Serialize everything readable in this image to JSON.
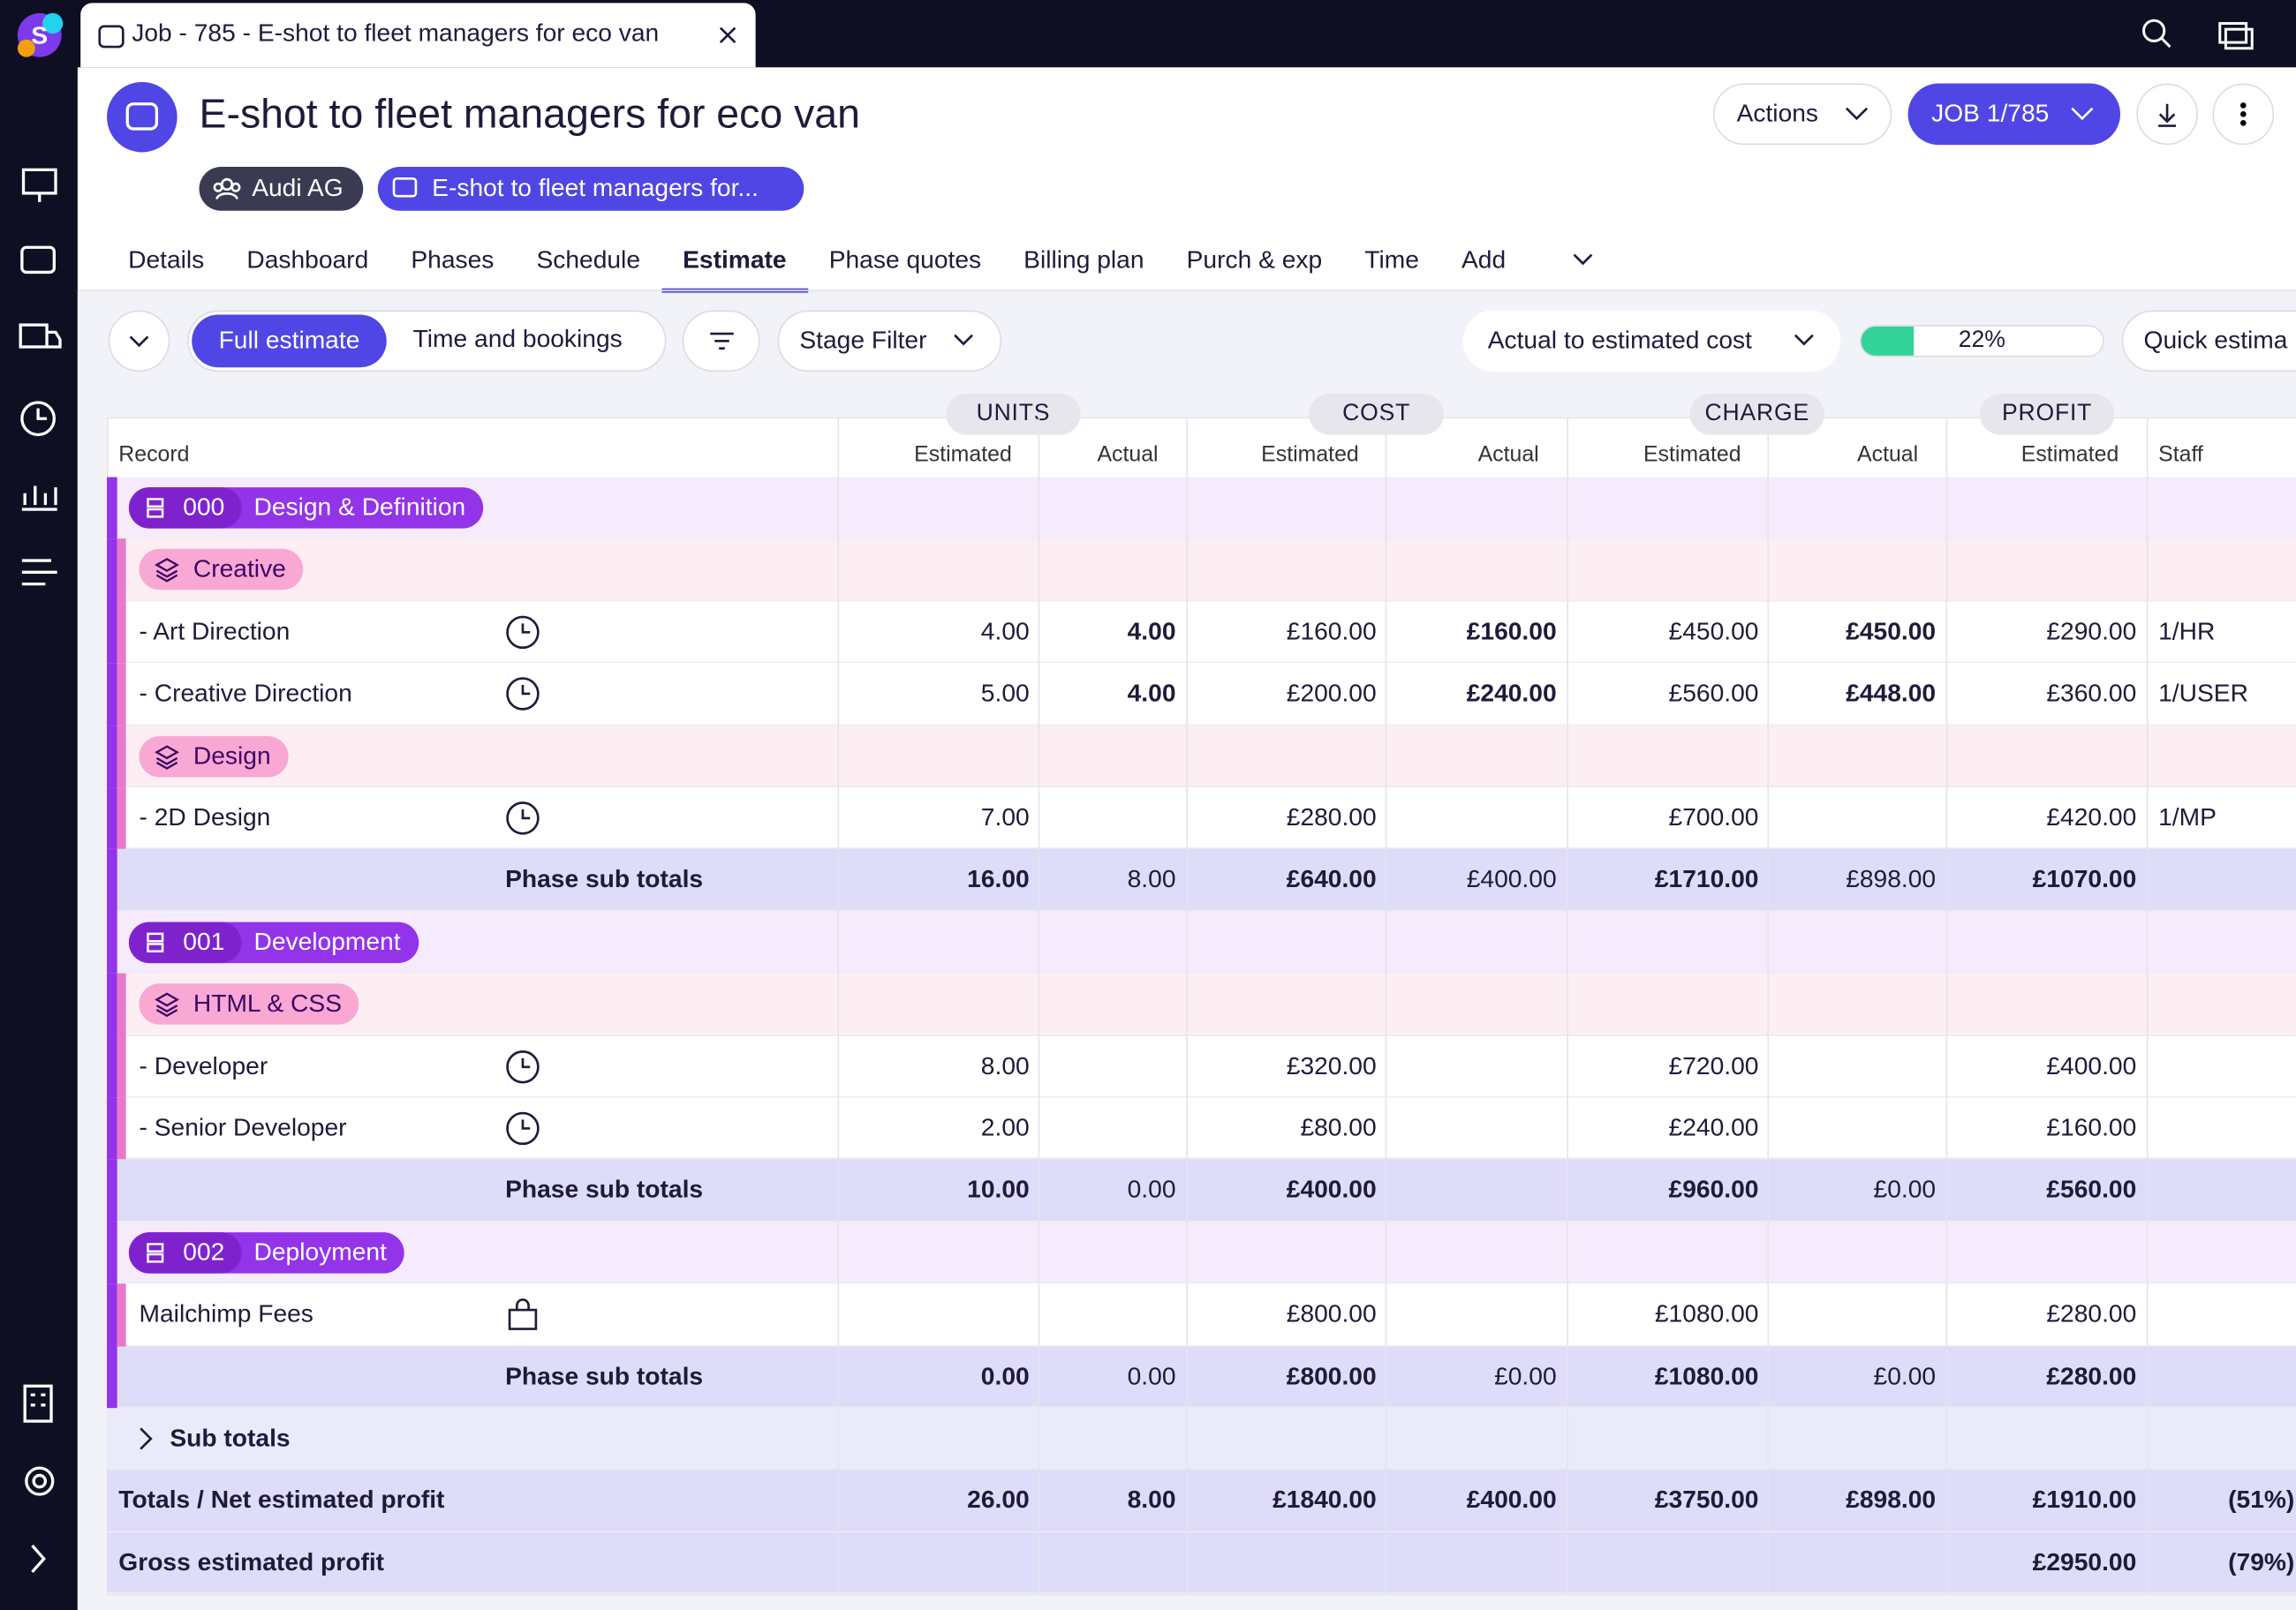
{
  "tab": {
    "title": "Job - 785 - E-shot to fleet managers for eco van"
  },
  "header": {
    "title": "E-shot to fleet managers for eco van",
    "client": "Audi AG",
    "job_chip": "E-shot to fleet managers for...",
    "actions": "Actions",
    "job_button": "JOB 1/785"
  },
  "nav": [
    "Details",
    "Dashboard",
    "Phases",
    "Schedule",
    "Estimate",
    "Phase quotes",
    "Billing plan",
    "Purch & exp",
    "Time",
    "Add"
  ],
  "toolbar": {
    "views": [
      "Full estimate",
      "Time and bookings"
    ],
    "stage_filter": "Stage Filter",
    "metric": "Actual to estimated cost",
    "progress": {
      "value": 22,
      "label": "22%"
    },
    "quick": "Quick estima"
  },
  "table": {
    "groups": [
      "UNITS",
      "COST",
      "CHARGE",
      "PROFIT"
    ],
    "columns": [
      "Record",
      "Estimated",
      "Actual",
      "Estimated",
      "Actual",
      "Estimated",
      "Actual",
      "Estimated",
      "Staff"
    ],
    "rows": [
      {
        "kind": "phase",
        "code": "000",
        "name": "Design & Definition"
      },
      {
        "kind": "stage",
        "name": "Creative"
      },
      {
        "kind": "item",
        "icon": "clock",
        "name": "- Art Direction",
        "cells": [
          "4.00",
          "4.00",
          "£160.00",
          "£160.00",
          "£450.00",
          "£450.00",
          "£290.00",
          "1/HR"
        ]
      },
      {
        "kind": "item",
        "icon": "clock",
        "name": "- Creative Direction",
        "cells": [
          "5.00",
          "4.00",
          "£200.00",
          "£240.00",
          "£560.00",
          "£448.00",
          "£360.00",
          "1/USER"
        ]
      },
      {
        "kind": "stage",
        "name": "Design"
      },
      {
        "kind": "item",
        "icon": "clock",
        "name": "- 2D Design",
        "cells": [
          "7.00",
          null,
          "£280.00",
          null,
          "£700.00",
          null,
          "£420.00",
          "1/MP"
        ]
      },
      {
        "kind": "subtotal",
        "name": "Phase sub totals",
        "cells": [
          "16.00",
          "8.00",
          "£640.00",
          "£400.00",
          "£1710.00",
          "£898.00",
          "£1070.00",
          null
        ]
      },
      {
        "kind": "phase",
        "code": "001",
        "name": "Development"
      },
      {
        "kind": "stage",
        "name": "HTML & CSS"
      },
      {
        "kind": "item",
        "icon": "clock",
        "name": "- Developer",
        "cells": [
          "8.00",
          null,
          "£320.00",
          null,
          "£720.00",
          null,
          "£400.00",
          null
        ]
      },
      {
        "kind": "item",
        "icon": "clock",
        "name": "- Senior Developer",
        "cells": [
          "2.00",
          null,
          "£80.00",
          null,
          "£240.00",
          null,
          "£160.00",
          null
        ]
      },
      {
        "kind": "subtotal",
        "name": "Phase sub totals",
        "cells": [
          "10.00",
          "0.00",
          "£400.00",
          null,
          "£960.00",
          "£0.00",
          "£560.00",
          null
        ]
      },
      {
        "kind": "phase",
        "code": "002",
        "name": "Deployment"
      },
      {
        "kind": "item",
        "icon": "bag",
        "name": "Mailchimp Fees",
        "cells": [
          null,
          null,
          "£800.00",
          null,
          "£1080.00",
          null,
          "£280.00",
          null
        ]
      },
      {
        "kind": "subtotal",
        "name": "Phase sub totals",
        "cells": [
          "0.00",
          "0.00",
          "£800.00",
          "£0.00",
          "£1080.00",
          "£0.00",
          "£280.00",
          null
        ]
      },
      {
        "kind": "collapsed",
        "name": "Sub totals"
      },
      {
        "kind": "total",
        "name": "Totals / Net estimated profit",
        "cells": [
          "26.00",
          "8.00",
          "£1840.00",
          "£400.00",
          "£3750.00",
          "£898.00",
          "£1910.00",
          "(51%)"
        ]
      },
      {
        "kind": "total",
        "name": "Gross estimated profit",
        "cells": [
          null,
          null,
          null,
          null,
          null,
          null,
          "£2950.00",
          "(79%)"
        ]
      }
    ]
  }
}
